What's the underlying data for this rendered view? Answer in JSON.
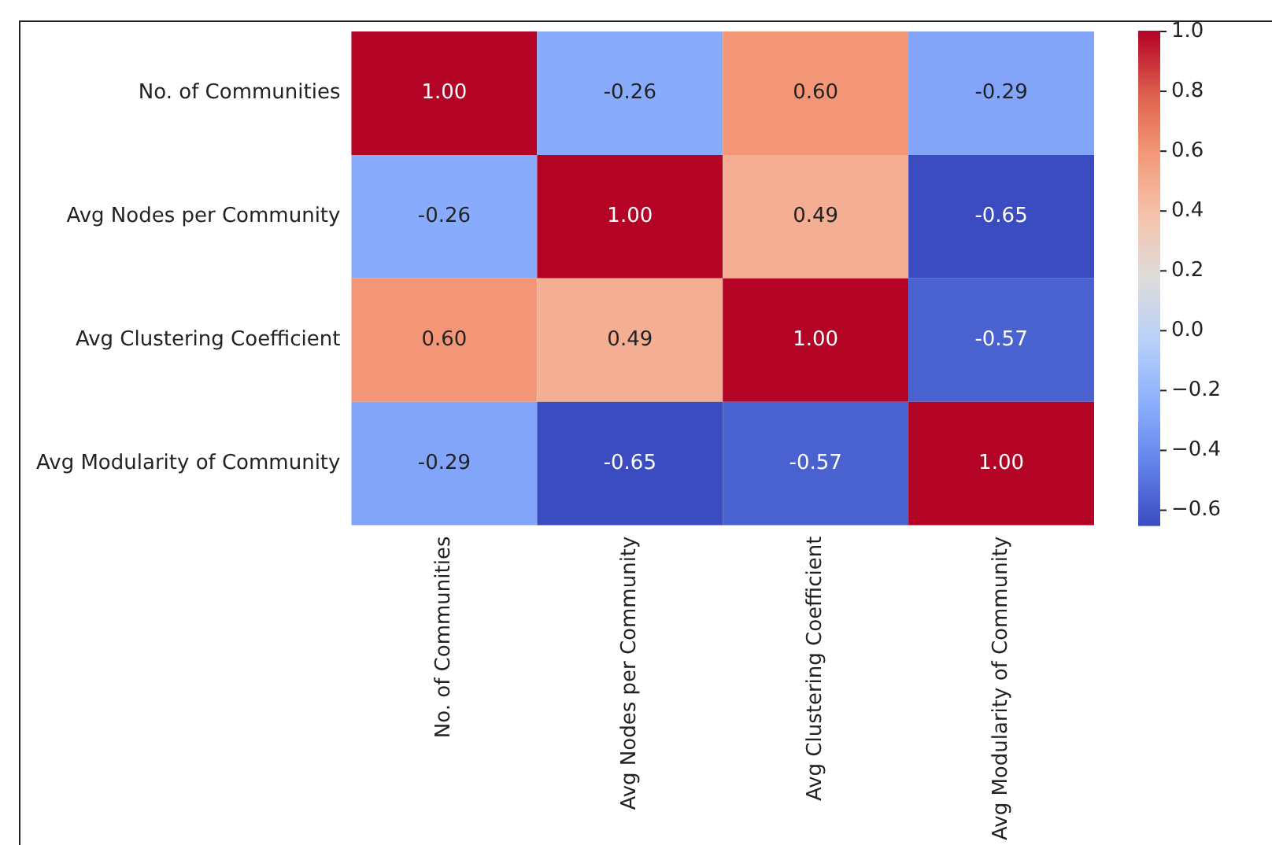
{
  "chart_data": {
    "type": "heatmap",
    "categories": [
      "No. of Communities",
      "Avg Nodes per Community",
      "Avg Clustering Coefficient",
      "Avg Modularity of Community"
    ],
    "y_categories": [
      "No. of Communities",
      "Avg Nodes per Community",
      "Avg Clustering Coefficient",
      "Avg Modularity of Community"
    ],
    "cells": [
      [
        1.0,
        -0.26,
        0.6,
        -0.29
      ],
      [
        -0.26,
        1.0,
        0.49,
        -0.65
      ],
      [
        0.6,
        0.49,
        1.0,
        -0.57
      ],
      [
        -0.29,
        -0.65,
        -0.57,
        1.0
      ]
    ],
    "cell_labels": [
      [
        "1.00",
        "-0.26",
        "0.60",
        "-0.29"
      ],
      [
        "-0.26",
        "1.00",
        "0.49",
        "-0.65"
      ],
      [
        "0.60",
        "0.49",
        "1.00",
        "-0.57"
      ],
      [
        "-0.29",
        "-0.65",
        "-0.57",
        "1.00"
      ]
    ],
    "clim": [
      -0.65,
      1.0
    ],
    "cticks": [
      {
        "value": -0.6,
        "label": "−0.6"
      },
      {
        "value": -0.4,
        "label": "−0.4"
      },
      {
        "value": -0.2,
        "label": "−0.2"
      },
      {
        "value": 0,
        "label": "0.0"
      },
      {
        "value": 0.2,
        "label": "0.2"
      },
      {
        "value": 0.4,
        "label": "0.4"
      },
      {
        "value": 0.6,
        "label": "0.6"
      },
      {
        "value": 0.8,
        "label": "0.8"
      },
      {
        "value": 1.0,
        "label": "1.0"
      }
    ]
  }
}
